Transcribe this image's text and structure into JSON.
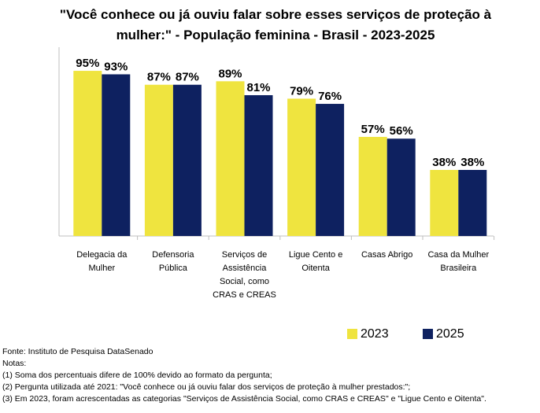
{
  "chart_data": {
    "type": "bar",
    "title": "\"Você conhece ou já ouviu falar sobre esses serviços de proteção à mulher:\" - População feminina - Brasil - 2023-2025",
    "categories": [
      "Delegacia da Mulher",
      "Defensoria Pública",
      "Serviços de Assistência Social, como CRAS e CREAS",
      "Ligue Cento e Oitenta",
      "Casas Abrigo",
      "Casa da Mulher Brasileira"
    ],
    "series": [
      {
        "name": "2023",
        "color": "#efe43f",
        "values": [
          95,
          87,
          89,
          79,
          57,
          38
        ],
        "value_labels": [
          "95%",
          "87%",
          "89%",
          "79%",
          "57%",
          "38%"
        ]
      },
      {
        "name": "2025",
        "color": "#0e2160",
        "values": [
          93,
          87,
          81,
          76,
          56,
          38
        ],
        "value_labels": [
          "93%",
          "87%",
          "81%",
          "76%",
          "56%",
          "38%"
        ]
      }
    ],
    "legend": "bottom-right"
  },
  "footer": {
    "source": "Fonte: Instituto de Pesquisa DataSenado",
    "heading": "Notas:",
    "notes": [
      "(1) Soma dos percentuais difere de 100% devido ao formato da pergunta;",
      "(2) Pergunta utilizada até 2021: \"Você conhece ou já ouviu falar dos serviços de proteção à mulher prestados:\";",
      "(3) Em 2023, foram acrescentadas as categorias \"Serviços de Assistência Social, como CRAS e CREAS\" e \"Ligue Cento e Oitenta\"."
    ]
  }
}
